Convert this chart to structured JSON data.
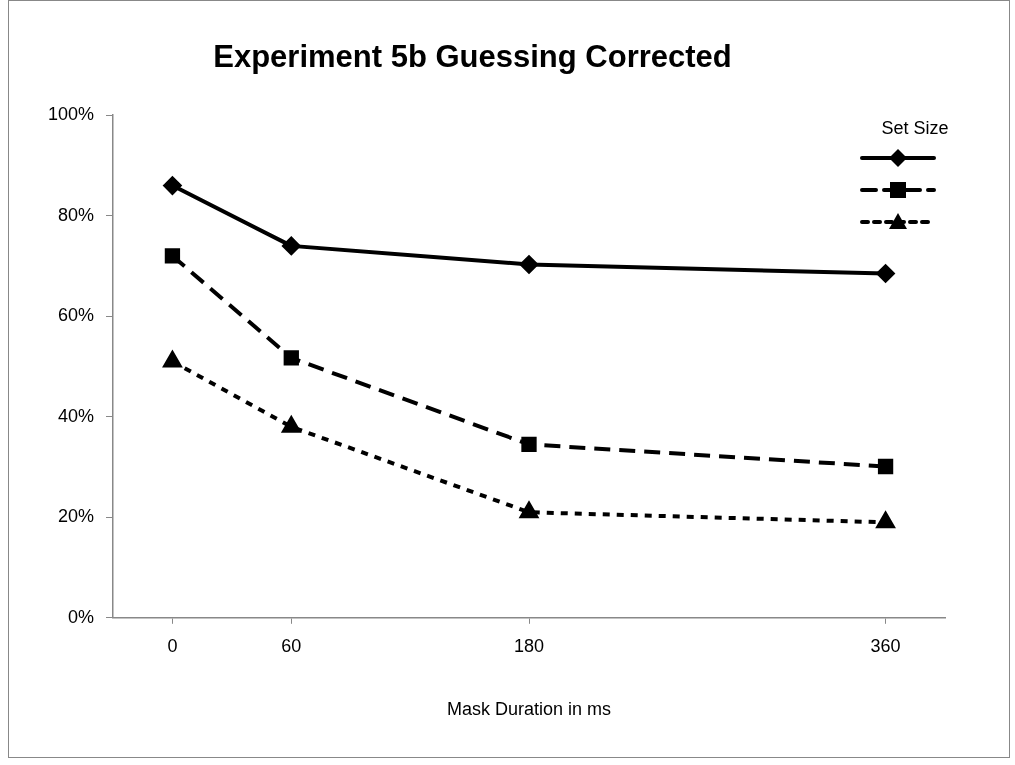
{
  "chart_data": {
    "type": "line",
    "title": "Experiment 5b Guessing Corrected",
    "xlabel": "Mask Duration in ms",
    "legend_title": "Set Size",
    "grid": false,
    "x": [
      0,
      60,
      180,
      360
    ],
    "xlim": [
      -30,
      390
    ],
    "xticks": [
      0,
      60,
      180,
      360
    ],
    "ylim": [
      0,
      100
    ],
    "yticks": [
      {
        "value": 0,
        "label": "0%"
      },
      {
        "value": 20,
        "label": "20%"
      },
      {
        "value": 40,
        "label": "40%"
      },
      {
        "value": 60,
        "label": "60%"
      },
      {
        "value": 80,
        "label": "80%"
      },
      {
        "value": 100,
        "label": "100%"
      }
    ],
    "series": [
      {
        "color": "#000000",
        "marker": "diamond",
        "line_style": "solid",
        "values": [
          86,
          74,
          70.3,
          68.5
        ]
      },
      {
        "color": "#000000",
        "marker": "square",
        "line_style": "dashed",
        "values": [
          72,
          51.7,
          34.5,
          30.1
        ]
      },
      {
        "color": "#000000",
        "marker": "triangle",
        "line_style": "dotted",
        "values": [
          51,
          38,
          21,
          19
        ]
      }
    ]
  }
}
